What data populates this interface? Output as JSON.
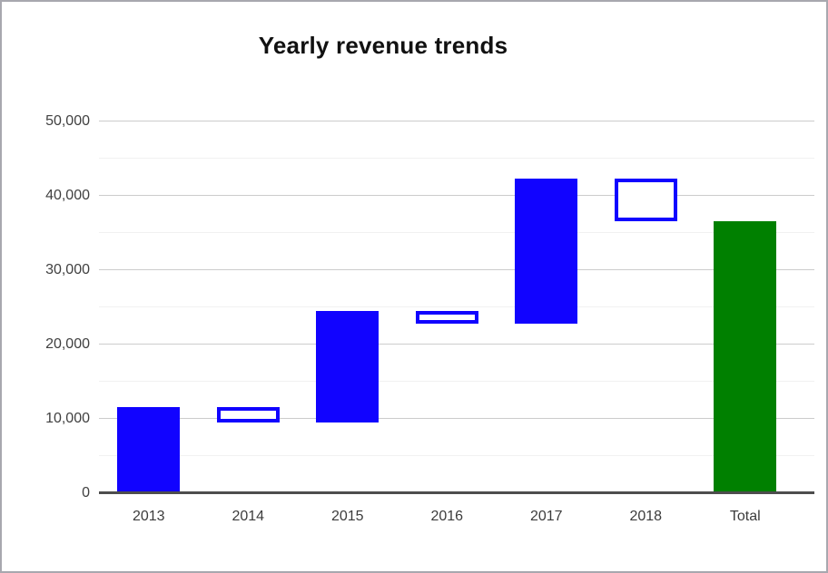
{
  "chart_data": {
    "type": "bar",
    "subtype": "waterfall",
    "title": "Yearly revenue trends",
    "categories": [
      "2013",
      "2014",
      "2015",
      "2016",
      "2017",
      "2018",
      "Total"
    ],
    "bars": [
      {
        "label": "2013",
        "start": 0,
        "end": 11500,
        "delta": 11500,
        "style": "increase"
      },
      {
        "label": "2014",
        "start": 11500,
        "end": 9500,
        "delta": -2000,
        "style": "decrease"
      },
      {
        "label": "2015",
        "start": 9500,
        "end": 24500,
        "delta": 15000,
        "style": "increase"
      },
      {
        "label": "2016",
        "start": 24500,
        "end": 22800,
        "delta": -1700,
        "style": "decrease"
      },
      {
        "label": "2017",
        "start": 22800,
        "end": 42200,
        "delta": 19400,
        "style": "increase"
      },
      {
        "label": "2018",
        "start": 42200,
        "end": 36500,
        "delta": -5700,
        "style": "decrease"
      },
      {
        "label": "Total",
        "start": 0,
        "end": 36500,
        "delta": 36500,
        "style": "total"
      }
    ],
    "y_axis": {
      "min": 0,
      "max": 50000,
      "major_step": 10000,
      "minor_step": 5000,
      "tick_labels": [
        "0",
        "10,000",
        "20,000",
        "30,000",
        "40,000",
        "50,000"
      ]
    },
    "xlabel": "",
    "ylabel": "",
    "legend": "none",
    "grid": "on",
    "colors": {
      "increase_fill": "#1103ff",
      "decrease_fill": "#ffffff",
      "decrease_border": "#1103ff",
      "total_fill": "#008000",
      "grid_major": "#cccccc",
      "grid_minor": "#f1f1f1",
      "baseline": "#4d4d4d"
    }
  }
}
